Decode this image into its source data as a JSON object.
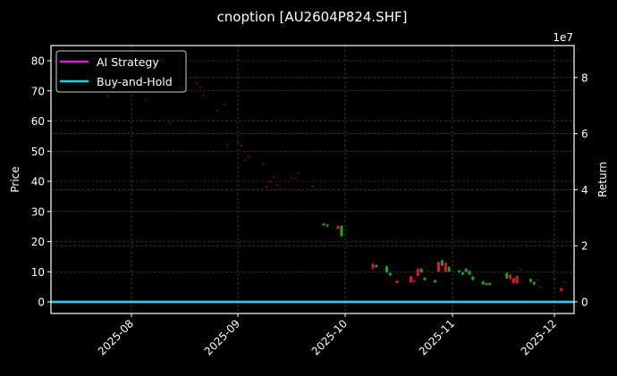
{
  "chart_data": {
    "type": "candlestick+line",
    "title": "cnoption [AU2604P824.SHF]",
    "xlabel": "",
    "ylabel": "Price",
    "y2label": "Return",
    "y2_offset_text": "1e7",
    "x_ticks": [
      "2025-08",
      "2025-09",
      "2025-10",
      "2025-11",
      "2025-12"
    ],
    "y_ticks": [
      0,
      10,
      20,
      30,
      40,
      50,
      60,
      70,
      80
    ],
    "y2_ticks": [
      0,
      2,
      4,
      6,
      8
    ],
    "ylim": [
      -4,
      85
    ],
    "y2lim": [
      -0.4,
      9.1
    ],
    "grid": true,
    "legend": {
      "position": "upper left",
      "entries": [
        {
          "label": "AI Strategy",
          "color": "#d41fd4"
        },
        {
          "label": "Buy-and-Hold",
          "color": "#22d3e6"
        }
      ]
    },
    "series": [
      {
        "name": "AI Strategy",
        "type": "line",
        "axis": "y2",
        "values_note": "flat at ~0",
        "value": 0
      },
      {
        "name": "Buy-and-Hold",
        "type": "line",
        "axis": "y2",
        "values_note": "flat at ~0",
        "value": 0
      }
    ],
    "candles": [
      {
        "date": "2025-07-25",
        "open": 68.5,
        "close": 68.2,
        "high": 68.8,
        "low": 68.0,
        "dim": true
      },
      {
        "date": "2025-08-05",
        "open": 67.2,
        "close": 66.8,
        "high": 67.4,
        "low": 66.6,
        "dim": true
      },
      {
        "date": "2025-08-12",
        "open": 59.5,
        "close": 59.2,
        "high": 59.7,
        "low": 59.0,
        "dim": true
      },
      {
        "date": "2025-08-20",
        "open": 72.8,
        "close": 72.3,
        "high": 73.0,
        "low": 72.0,
        "dim": true
      },
      {
        "date": "2025-08-21",
        "open": 71.2,
        "close": 70.8,
        "high": 71.4,
        "low": 70.6,
        "dim": true
      },
      {
        "date": "2025-08-22",
        "open": 68.6,
        "close": 68.2,
        "high": 68.8,
        "low": 68.0,
        "dim": true
      },
      {
        "date": "2025-08-26",
        "open": 63.8,
        "close": 63.4,
        "high": 64.0,
        "low": 63.2,
        "dim": true
      },
      {
        "date": "2025-08-28",
        "open": 65.8,
        "close": 65.4,
        "high": 66.0,
        "low": 65.2,
        "dim": true
      },
      {
        "date": "2025-08-29",
        "open": 52.3,
        "close": 52.0,
        "high": 52.5,
        "low": 51.8,
        "dim": true
      },
      {
        "date": "2025-09-01",
        "open": 53.0,
        "close": 52.6,
        "high": 53.2,
        "low": 52.4,
        "dim": true
      },
      {
        "date": "2025-09-02",
        "open": 52.0,
        "close": 51.6,
        "high": 52.2,
        "low": 51.4,
        "dim": true
      },
      {
        "date": "2025-09-03",
        "open": 47.2,
        "close": 46.8,
        "high": 47.4,
        "low": 46.6,
        "dim": true
      },
      {
        "date": "2025-09-04",
        "open": 48.3,
        "close": 48.0,
        "high": 48.5,
        "low": 47.8,
        "dim": true
      },
      {
        "date": "2025-09-08",
        "open": 46.0,
        "close": 45.6,
        "high": 46.2,
        "low": 45.4,
        "dim": true
      },
      {
        "date": "2025-09-09",
        "open": 38.4,
        "close": 38.0,
        "high": 38.6,
        "low": 37.8,
        "dim": true
      },
      {
        "date": "2025-09-10",
        "open": 40.0,
        "close": 39.6,
        "high": 40.2,
        "low": 39.4,
        "dim": true
      },
      {
        "date": "2025-09-11",
        "open": 41.5,
        "close": 41.2,
        "high": 41.7,
        "low": 41.0,
        "dim": true
      },
      {
        "date": "2025-09-12",
        "open": 39.0,
        "close": 38.7,
        "high": 39.2,
        "low": 38.5,
        "dim": true
      },
      {
        "date": "2025-09-16",
        "open": 41.2,
        "close": 40.9,
        "high": 41.4,
        "low": 40.7,
        "dim": true
      },
      {
        "date": "2025-09-17",
        "open": 41.2,
        "close": 40.9,
        "high": 41.4,
        "low": 40.7,
        "dim": true
      },
      {
        "date": "2025-09-18",
        "open": 42.9,
        "close": 42.6,
        "high": 43.1,
        "low": 42.4,
        "dim": true
      },
      {
        "date": "2025-09-22",
        "open": 38.5,
        "close": 38.2,
        "high": 38.7,
        "low": 38.0,
        "dim": true
      },
      {
        "date": "2025-09-25",
        "open": 25.4,
        "close": 26.0,
        "high": 26.2,
        "low": 25.2
      },
      {
        "date": "2025-09-26",
        "open": 25.0,
        "close": 25.6,
        "high": 25.8,
        "low": 24.8
      },
      {
        "date": "2025-09-29",
        "open": 25.2,
        "close": 24.2,
        "high": 25.4,
        "low": 24.0
      },
      {
        "date": "2025-09-30",
        "open": 21.8,
        "close": 25.2,
        "high": 25.6,
        "low": 21.5
      },
      {
        "date": "2025-10-09",
        "open": 12.6,
        "close": 11.0,
        "high": 13.0,
        "low": 10.8
      },
      {
        "date": "2025-10-10",
        "open": 11.5,
        "close": 12.2,
        "high": 12.4,
        "low": 11.3
      },
      {
        "date": "2025-10-13",
        "open": 9.8,
        "close": 11.8,
        "high": 12.0,
        "low": 9.6
      },
      {
        "date": "2025-10-14",
        "open": 8.8,
        "close": 9.6,
        "high": 9.8,
        "low": 8.6
      },
      {
        "date": "2025-10-16",
        "open": 7.0,
        "close": 6.3,
        "high": 7.2,
        "low": 6.1
      },
      {
        "date": "2025-10-20",
        "open": 8.5,
        "close": 6.5,
        "high": 8.7,
        "low": 6.3
      },
      {
        "date": "2025-10-21",
        "open": 7.0,
        "close": 6.6,
        "high": 7.2,
        "low": 6.4
      },
      {
        "date": "2025-10-22",
        "open": 11.0,
        "close": 8.6,
        "high": 11.2,
        "low": 8.4
      },
      {
        "date": "2025-10-23",
        "open": 9.8,
        "close": 11.0,
        "high": 11.2,
        "low": 9.6
      },
      {
        "date": "2025-10-24",
        "open": 7.2,
        "close": 8.0,
        "high": 8.2,
        "low": 7.0
      },
      {
        "date": "2025-10-27",
        "open": 6.4,
        "close": 7.2,
        "high": 7.4,
        "low": 6.2
      },
      {
        "date": "2025-10-28",
        "open": 13.2,
        "close": 10.0,
        "high": 13.4,
        "low": 9.8
      },
      {
        "date": "2025-10-29",
        "open": 12.0,
        "close": 13.8,
        "high": 14.0,
        "low": 11.8
      },
      {
        "date": "2025-10-30",
        "open": 13.0,
        "close": 10.0,
        "high": 13.2,
        "low": 9.8
      },
      {
        "date": "2025-10-31",
        "open": 10.0,
        "close": 11.6,
        "high": 11.8,
        "low": 9.8
      },
      {
        "date": "2025-11-03",
        "open": 9.8,
        "close": 10.4,
        "high": 10.6,
        "low": 9.6
      },
      {
        "date": "2025-11-04",
        "open": 9.0,
        "close": 9.8,
        "high": 10.0,
        "low": 8.8
      },
      {
        "date": "2025-11-05",
        "open": 10.0,
        "close": 11.0,
        "high": 11.2,
        "low": 9.8
      },
      {
        "date": "2025-11-06",
        "open": 9.0,
        "close": 10.2,
        "high": 10.4,
        "low": 8.8
      },
      {
        "date": "2025-11-07",
        "open": 7.2,
        "close": 8.4,
        "high": 8.6,
        "low": 7.0
      },
      {
        "date": "2025-11-10",
        "open": 5.8,
        "close": 6.8,
        "high": 7.0,
        "low": 5.6
      },
      {
        "date": "2025-11-11",
        "open": 5.6,
        "close": 6.2,
        "high": 6.4,
        "low": 5.4
      },
      {
        "date": "2025-11-12",
        "open": 5.6,
        "close": 6.2,
        "high": 6.4,
        "low": 5.4
      },
      {
        "date": "2025-11-17",
        "open": 7.8,
        "close": 9.6,
        "high": 9.8,
        "low": 7.6
      },
      {
        "date": "2025-11-18",
        "open": 9.0,
        "close": 7.6,
        "high": 9.2,
        "low": 7.4
      },
      {
        "date": "2025-11-19",
        "open": 7.8,
        "close": 6.2,
        "high": 8.0,
        "low": 6.0
      },
      {
        "date": "2025-11-20",
        "open": 8.6,
        "close": 6.2,
        "high": 8.8,
        "low": 6.0
      },
      {
        "date": "2025-11-21",
        "open": 11.0,
        "close": 10.7,
        "high": 11.2,
        "low": 10.5,
        "dim": true
      },
      {
        "date": "2025-11-24",
        "open": 6.6,
        "close": 7.6,
        "high": 7.8,
        "low": 6.4
      },
      {
        "date": "2025-11-25",
        "open": 5.8,
        "close": 6.6,
        "high": 6.8,
        "low": 5.6
      },
      {
        "date": "2025-11-26",
        "open": 7.4,
        "close": 7.0,
        "high": 7.6,
        "low": 6.8,
        "dim": true
      },
      {
        "date": "2025-11-27",
        "open": 5.0,
        "close": 4.7,
        "high": 5.2,
        "low": 4.5,
        "dim": true
      },
      {
        "date": "2025-12-01",
        "open": 7.6,
        "close": 7.3,
        "high": 7.8,
        "low": 7.1,
        "dim": true
      },
      {
        "date": "2025-12-03",
        "open": 4.5,
        "close": 3.6,
        "high": 4.7,
        "low": 3.4
      },
      {
        "date": "2025-12-04",
        "open": 6.8,
        "close": 6.4,
        "high": 7.0,
        "low": 6.2,
        "dim": true
      }
    ],
    "colors": {
      "up": "#1fa31f",
      "down": "#e0152a",
      "background": "#000000",
      "grid": "#555555",
      "axes": "#ffffff",
      "ai_strategy": "#d41fd4",
      "buy_and_hold": "#22d3e6"
    }
  }
}
